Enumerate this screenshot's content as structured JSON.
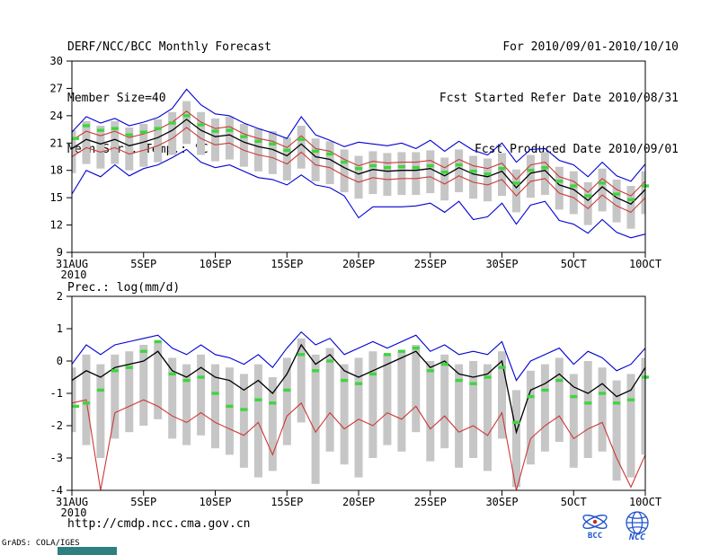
{
  "header": {
    "title": "DERF/NCC/BCC Monthly Forecast",
    "member_size": "Member Size=40",
    "for_period": "For 2010/09/01-2010/10/10",
    "refer_date": "Fcst Started Refer Date 2010/08/31",
    "produced_date": "Fcst Produced Date 2010/09/01"
  },
  "footer": {
    "url": "http://cmdp.ncc.cma.gov.cn",
    "credit": "GrADS: COLA/IGES",
    "bcc_logo_label": "BCC",
    "ncc_logo_label": "NCC"
  },
  "colors": {
    "envelope_blue": "#0000d2",
    "band_red": "#cc3838",
    "mean_black": "#000000",
    "marks_green": "#3cd63c",
    "spread_gray": "#c6c6c6",
    "logo_blue": "#2255cc"
  },
  "chart_data": [
    {
      "id": "temp",
      "type": "line",
      "title": "Mean Surf. Temp.: °C",
      "ylim": [
        9,
        30
      ],
      "yticks": [
        9,
        12,
        15,
        18,
        21,
        24,
        27,
        30
      ],
      "x_year": "2010",
      "xticks": [
        {
          "day": 0,
          "label": "31AUG"
        },
        {
          "day": 5,
          "label": "5SEP"
        },
        {
          "day": 10,
          "label": "10SEP"
        },
        {
          "day": 15,
          "label": "15SEP"
        },
        {
          "day": 20,
          "label": "20SEP"
        },
        {
          "day": 25,
          "label": "25SEP"
        },
        {
          "day": 30,
          "label": "30SEP"
        },
        {
          "day": 35,
          "label": "5OCT"
        },
        {
          "day": 40,
          "label": "10OCT"
        }
      ],
      "bars": {
        "color": "#c6c6c6",
        "high": [
          22.4,
          23.4,
          22.9,
          23.4,
          22.7,
          23.1,
          23.6,
          24.4,
          25.6,
          24.4,
          23.7,
          23.9,
          23.1,
          22.6,
          22.3,
          21.6,
          22.9,
          21.5,
          21.2,
          20.3,
          19.6,
          20.1,
          19.9,
          20.0,
          20.0,
          20.2,
          19.4,
          20.3,
          19.6,
          19.3,
          19.9,
          18.1,
          19.7,
          20.0,
          18.4,
          17.9,
          16.7,
          18.2,
          17.0,
          16.3,
          17.9
        ],
        "low": [
          17.7,
          18.7,
          18.2,
          18.7,
          18.0,
          18.4,
          18.9,
          19.7,
          20.9,
          19.7,
          19.0,
          19.2,
          18.4,
          17.9,
          17.6,
          16.9,
          18.2,
          16.8,
          16.5,
          15.6,
          14.9,
          15.4,
          15.2,
          15.3,
          15.3,
          15.5,
          14.7,
          15.6,
          14.9,
          14.6,
          15.2,
          13.4,
          15.0,
          15.3,
          13.7,
          13.2,
          12.0,
          13.5,
          12.3,
          11.6,
          13.2
        ]
      },
      "series": [
        {
          "name": "upper-envelope",
          "color": "#0000d2",
          "values": [
            22.2,
            23.9,
            23.2,
            23.7,
            22.9,
            23.3,
            23.8,
            24.8,
            26.9,
            25.2,
            24.2,
            24.0,
            23.2,
            22.6,
            22.1,
            21.5,
            23.9,
            21.9,
            21.3,
            20.6,
            21.1,
            20.9,
            20.7,
            21.0,
            20.4,
            21.3,
            20.1,
            21.2,
            20.2,
            19.7,
            21.0,
            18.9,
            20.3,
            20.4,
            19.1,
            18.6,
            17.3,
            18.9,
            17.4,
            16.8,
            18.7
          ]
        },
        {
          "name": "lower-envelope",
          "color": "#0000d2",
          "values": [
            15.4,
            18.0,
            17.3,
            18.6,
            17.4,
            18.2,
            18.6,
            19.4,
            20.3,
            18.9,
            18.3,
            18.6,
            17.9,
            17.2,
            17.0,
            16.4,
            17.5,
            16.4,
            16.1,
            15.2,
            12.8,
            14.0,
            14.0,
            14.0,
            14.1,
            14.4,
            13.4,
            14.6,
            12.6,
            12.9,
            14.4,
            12.1,
            14.2,
            14.6,
            12.5,
            12.1,
            11.1,
            12.6,
            11.2,
            10.6,
            11.0
          ]
        },
        {
          "name": "upper-band",
          "color": "#cc3838",
          "values": [
            21.3,
            22.3,
            21.8,
            22.3,
            21.6,
            22.0,
            22.5,
            23.3,
            24.5,
            23.3,
            22.6,
            22.8,
            22.0,
            21.5,
            21.2,
            20.5,
            21.8,
            20.4,
            20.1,
            19.2,
            18.5,
            19.0,
            18.8,
            18.9,
            18.9,
            19.1,
            18.3,
            19.2,
            18.5,
            18.2,
            18.8,
            17.0,
            18.6,
            18.9,
            17.3,
            16.8,
            15.6,
            17.1,
            15.9,
            15.2,
            16.8
          ]
        },
        {
          "name": "lower-band",
          "color": "#cc3838",
          "values": [
            19.5,
            20.5,
            20.0,
            20.5,
            19.8,
            20.2,
            20.7,
            21.5,
            22.7,
            21.5,
            20.8,
            21.0,
            20.2,
            19.7,
            19.4,
            18.7,
            20.0,
            18.6,
            18.3,
            17.4,
            16.7,
            17.2,
            17.0,
            17.1,
            17.1,
            17.3,
            16.5,
            17.4,
            16.7,
            16.4,
            17.0,
            15.2,
            16.8,
            17.1,
            15.5,
            15.0,
            13.8,
            15.3,
            14.1,
            13.4,
            15.0
          ]
        },
        {
          "name": "mean",
          "color": "#000000",
          "values": [
            20.4,
            21.4,
            20.9,
            21.4,
            20.7,
            21.1,
            21.6,
            22.4,
            23.6,
            22.4,
            21.7,
            21.9,
            21.1,
            20.6,
            20.3,
            19.6,
            20.9,
            19.5,
            19.2,
            18.3,
            17.6,
            18.1,
            17.9,
            18.0,
            18.0,
            18.2,
            17.4,
            18.3,
            17.6,
            17.3,
            17.9,
            16.1,
            17.7,
            18.0,
            16.4,
            15.9,
            14.7,
            16.2,
            15.0,
            14.3,
            15.9
          ]
        }
      ],
      "marks": {
        "name": "daily-marks",
        "color": "#3cd63c",
        "values": [
          21.5,
          22.9,
          22.4,
          22.6,
          21.9,
          22.2,
          22.6,
          23.2,
          24.0,
          23.0,
          22.3,
          22.4,
          21.7,
          21.2,
          20.9,
          20.2,
          21.4,
          20.1,
          19.8,
          18.9,
          18.2,
          18.5,
          18.3,
          18.4,
          18.3,
          18.5,
          17.8,
          18.6,
          17.9,
          17.6,
          18.2,
          16.6,
          18.0,
          18.3,
          16.8,
          16.3,
          15.2,
          16.6,
          15.4,
          14.8,
          16.3
        ]
      }
    },
    {
      "id": "prec",
      "type": "line",
      "title": "Prec.: log(mm/d)",
      "ylim": [
        -4,
        2
      ],
      "yticks": [
        -4,
        -3,
        -2,
        -1,
        0,
        1,
        2
      ],
      "x_year": "2010",
      "xticks": [
        {
          "day": 0,
          "label": "31AUG"
        },
        {
          "day": 5,
          "label": "5SEP"
        },
        {
          "day": 10,
          "label": "10SEP"
        },
        {
          "day": 15,
          "label": "15SEP"
        },
        {
          "day": 20,
          "label": "20SEP"
        },
        {
          "day": 25,
          "label": "25SEP"
        },
        {
          "day": 30,
          "label": "30SEP"
        },
        {
          "day": 35,
          "label": "5OCT"
        },
        {
          "day": 40,
          "label": "10OCT"
        }
      ],
      "bars": {
        "color": "#c6c6c6",
        "high": [
          -0.2,
          0.2,
          -0.1,
          0.2,
          0.3,
          0.5,
          0.6,
          0.1,
          -0.1,
          0.2,
          -0.1,
          -0.2,
          -0.4,
          -0.1,
          -0.5,
          0.1,
          0.7,
          0.2,
          0.4,
          -0.1,
          0.1,
          0.3,
          0.2,
          0.3,
          0.5,
          0.0,
          0.2,
          -0.1,
          0.0,
          -0.1,
          0.3,
          -0.9,
          -0.3,
          -0.1,
          0.1,
          -0.4,
          0.0,
          -0.2,
          -0.6,
          -0.4,
          0.1
        ],
        "low": [
          -2.2,
          -2.6,
          -3.0,
          -2.4,
          -2.2,
          -2.0,
          -1.8,
          -2.4,
          -2.6,
          -2.3,
          -2.7,
          -2.9,
          -3.3,
          -3.6,
          -3.4,
          -2.6,
          -1.9,
          -3.8,
          -2.8,
          -3.2,
          -3.6,
          -3.0,
          -2.6,
          -2.8,
          -2.2,
          -3.1,
          -2.7,
          -3.3,
          -3.0,
          -3.4,
          -2.4,
          -3.9,
          -3.2,
          -2.8,
          -2.5,
          -3.3,
          -3.0,
          -2.8,
          -3.7,
          -3.6,
          -2.9
        ]
      },
      "series": [
        {
          "name": "upper-envelope",
          "color": "#0000d2",
          "values": [
            -0.1,
            0.5,
            0.2,
            0.5,
            0.6,
            0.7,
            0.8,
            0.4,
            0.2,
            0.5,
            0.2,
            0.1,
            -0.1,
            0.2,
            -0.2,
            0.4,
            0.9,
            0.5,
            0.7,
            0.2,
            0.4,
            0.6,
            0.4,
            0.6,
            0.8,
            0.3,
            0.5,
            0.2,
            0.3,
            0.2,
            0.6,
            -0.6,
            0.0,
            0.2,
            0.4,
            -0.1,
            0.3,
            0.1,
            -0.3,
            -0.1,
            0.4
          ]
        },
        {
          "name": "lower-envelope",
          "color": "#cc3838",
          "values": [
            -1.3,
            -1.2,
            -4.0,
            -1.6,
            -1.4,
            -1.2,
            -1.4,
            -1.7,
            -1.9,
            -1.6,
            -1.9,
            -2.1,
            -2.3,
            -1.9,
            -2.9,
            -1.7,
            -1.3,
            -2.2,
            -1.6,
            -2.1,
            -1.8,
            -2.0,
            -1.6,
            -1.8,
            -1.4,
            -2.1,
            -1.7,
            -2.2,
            -2.0,
            -2.3,
            -1.6,
            -4.0,
            -2.4,
            -2.0,
            -1.7,
            -2.4,
            -2.1,
            -1.9,
            -3.0,
            -3.9,
            -2.9
          ]
        },
        {
          "name": "mean",
          "color": "#000000",
          "values": [
            -0.6,
            -0.3,
            -0.5,
            -0.2,
            -0.1,
            0.0,
            0.3,
            -0.3,
            -0.5,
            -0.2,
            -0.5,
            -0.6,
            -0.9,
            -0.6,
            -1.0,
            -0.4,
            0.5,
            -0.1,
            0.2,
            -0.3,
            -0.5,
            -0.3,
            -0.1,
            0.1,
            0.3,
            -0.2,
            0.0,
            -0.4,
            -0.5,
            -0.4,
            0.0,
            -2.2,
            -0.9,
            -0.7,
            -0.4,
            -0.8,
            -1.0,
            -0.7,
            -1.1,
            -0.9,
            -0.2
          ]
        }
      ],
      "marks": {
        "name": "daily-marks",
        "color": "#3cd63c",
        "values": [
          -1.4,
          -1.3,
          -0.9,
          -0.3,
          -0.2,
          0.3,
          0.6,
          -0.4,
          -0.6,
          -0.5,
          -1.0,
          -1.4,
          -1.5,
          -1.2,
          -1.3,
          -0.9,
          0.2,
          -0.3,
          0.0,
          -0.6,
          -0.7,
          -0.4,
          0.2,
          0.3,
          0.4,
          -0.3,
          -0.1,
          -0.6,
          -0.7,
          -0.5,
          -0.2,
          -1.9,
          -1.1,
          -0.9,
          -0.6,
          -1.1,
          -1.3,
          -1.0,
          -1.3,
          -1.2,
          -0.5
        ]
      }
    }
  ]
}
